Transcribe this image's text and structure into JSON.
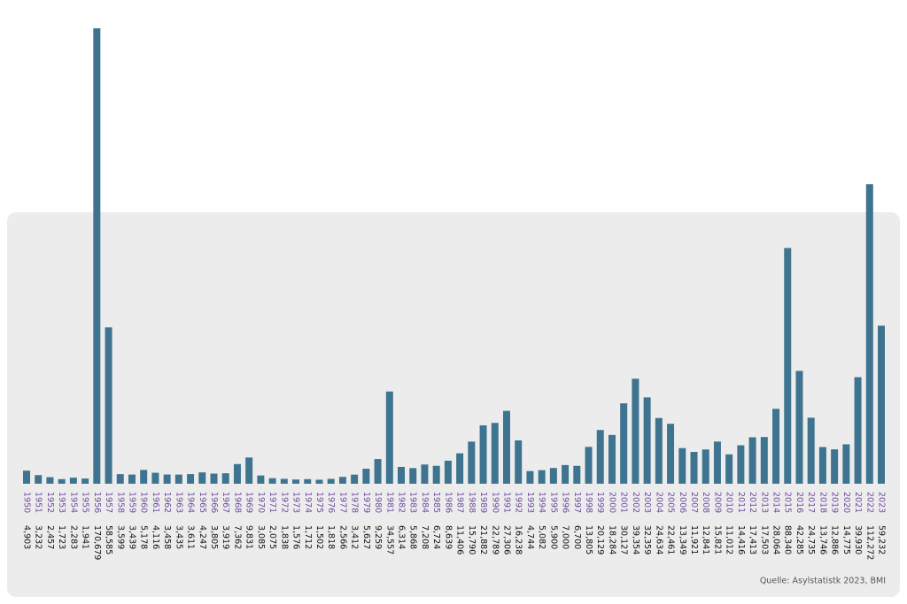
{
  "chart_data": {
    "type": "bar",
    "categories": [
      "1950",
      "1951",
      "1952",
      "1953",
      "1954",
      "1955",
      "1956",
      "1957",
      "1958",
      "1959",
      "1960",
      "1961",
      "1962",
      "1963",
      "1964",
      "1965",
      "1966",
      "1967",
      "1968",
      "1969",
      "1970",
      "1971",
      "1972",
      "1973",
      "1974",
      "1975",
      "1976",
      "1977",
      "1978",
      "1979",
      "1980",
      "1981",
      "1982",
      "1983",
      "1984",
      "1985",
      "1986",
      "1987",
      "1988",
      "1989",
      "1990",
      "1991",
      "1992",
      "1993",
      "1994",
      "1995",
      "1996",
      "1997",
      "1998",
      "1999",
      "2000",
      "2001",
      "2002",
      "2003",
      "2004",
      "2005",
      "2006",
      "2007",
      "2008",
      "2009",
      "2010",
      "2011",
      "2012",
      "2013",
      "2014",
      "2015",
      "2016",
      "2017",
      "2018",
      "2019",
      "2020",
      "2021",
      "2022",
      "2023"
    ],
    "values": [
      4903,
      3232,
      2457,
      1723,
      2283,
      1941,
      170679,
      58585,
      3599,
      3439,
      5178,
      4116,
      3458,
      3435,
      3611,
      4247,
      3805,
      3919,
      7362,
      9831,
      3085,
      2075,
      1838,
      1576,
      1712,
      1502,
      1818,
      2566,
      3412,
      5627,
      9259,
      34557,
      6314,
      5868,
      7208,
      6724,
      8639,
      11406,
      15790,
      21882,
      22789,
      27306,
      16238,
      4744,
      5082,
      5900,
      7000,
      6700,
      13805,
      20129,
      18284,
      30127,
      39354,
      32359,
      24634,
      22461,
      13349,
      11921,
      12841,
      15821,
      11012,
      14416,
      17413,
      17503,
      28064,
      88340,
      42285,
      24735,
      13746,
      12886,
      14775,
      39930,
      112272,
      59232
    ],
    "value_labels": [
      "4,903",
      "3,232",
      "2,457",
      "1,723",
      "2,283",
      "1,941",
      "170,679",
      "58,585",
      "3,599",
      "3,439",
      "5,178",
      "4,116",
      "3,458",
      "3,435",
      "3,611",
      "4,247",
      "3,805",
      "3,919",
      "7,362",
      "9,831",
      "3,085",
      "2,075",
      "1,838",
      "1,576",
      "1,712",
      "1,502",
      "1,818",
      "2,566",
      "3,412",
      "5,627",
      "9,259",
      "34,557",
      "6,314",
      "5,868",
      "7,208",
      "6,724",
      "8,639",
      "11,406",
      "15,790",
      "21,882",
      "22,789",
      "27,306",
      "16,238",
      "4,744",
      "5,082",
      "5,900",
      "7,000",
      "6,700",
      "13,805",
      "20,129",
      "18,284",
      "30,127",
      "39,354",
      "32,359",
      "24,634",
      "22,461",
      "13,349",
      "11,921",
      "12,841",
      "15,821",
      "11,012",
      "14,416",
      "17,413",
      "17,503",
      "28,064",
      "88,340",
      "42,285",
      "24,735",
      "13,746",
      "12,886",
      "14,775",
      "39,930",
      "112,272",
      "59,232"
    ],
    "color": "#3e7490",
    "category_color": "#6b4fa0",
    "source": "Quelle: Asylstatistk 2023, BMI"
  }
}
